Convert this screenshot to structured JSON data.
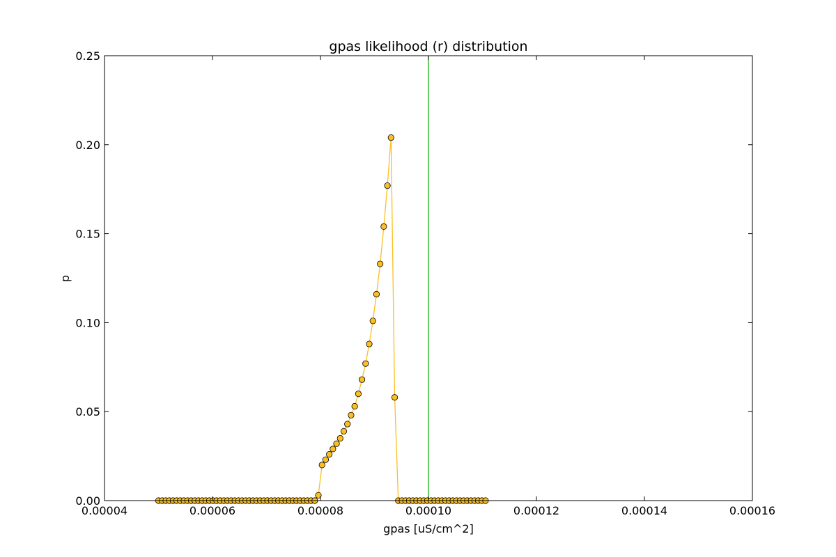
{
  "chart_data": {
    "type": "scatter",
    "title": "gpas likelihood (r) distribution",
    "xlabel": "gpas [uS/cm^2]",
    "ylabel": "p",
    "xlim": [
      4e-05,
      0.00016
    ],
    "ylim": [
      0.0,
      0.25
    ],
    "grid": false,
    "x_ticks": [
      "0.00004",
      "0.00006",
      "0.00008",
      "0.00010",
      "0.00012",
      "0.00014",
      "0.00016"
    ],
    "y_ticks": [
      "0.00",
      "0.05",
      "0.10",
      "0.15",
      "0.20",
      "0.25"
    ],
    "reference_line": {
      "x": 0.0001,
      "color": "#00aa00"
    },
    "series": [
      {
        "marker_color": "#fbbf24",
        "line_color": "#fbbf24",
        "x_start": 5e-05,
        "x_step": 6.73e-07,
        "count": 91,
        "nonzero": {
          "44": 0.003,
          "45": 0.02,
          "46": 0.023,
          "47": 0.026,
          "48": 0.029,
          "49": 0.032,
          "50": 0.035,
          "51": 0.039,
          "52": 0.043,
          "53": 0.048,
          "54": 0.053,
          "55": 0.06,
          "56": 0.068,
          "57": 0.077,
          "58": 0.088,
          "59": 0.101,
          "60": 0.116,
          "61": 0.133,
          "62": 0.154,
          "63": 0.177,
          "64": 0.204,
          "65": 0.058
        }
      }
    ]
  }
}
